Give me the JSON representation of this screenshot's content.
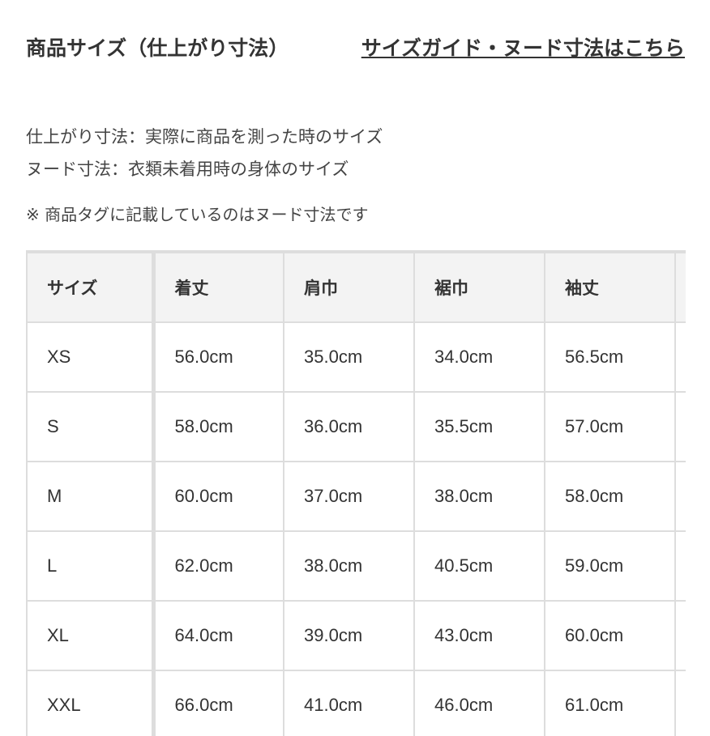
{
  "title": "商品サイズ（仕上がり寸法）",
  "guide_link": "サイズガイド・ヌード寸法はこちら",
  "notes": [
    "仕上がり寸法：実際に商品を測った時のサイズ",
    "ヌード寸法：衣類未着用時の身体のサイズ",
    "※ 商品タグに記載しているのはヌード寸法です"
  ],
  "table": {
    "headers": [
      "サイズ",
      "着丈",
      "肩巾",
      "裾巾",
      "袖丈",
      ""
    ],
    "rows": [
      [
        "XS",
        "56.0cm",
        "35.0cm",
        "34.0cm",
        "56.5cm",
        ""
      ],
      [
        "S",
        "58.0cm",
        "36.0cm",
        "35.5cm",
        "57.0cm",
        ""
      ],
      [
        "M",
        "60.0cm",
        "37.0cm",
        "38.0cm",
        "58.0cm",
        ""
      ],
      [
        "L",
        "62.0cm",
        "38.0cm",
        "40.5cm",
        "59.0cm",
        ""
      ],
      [
        "XL",
        "64.0cm",
        "39.0cm",
        "43.0cm",
        "60.0cm",
        ""
      ],
      [
        "XXL",
        "66.0cm",
        "41.0cm",
        "46.0cm",
        "61.0cm",
        ""
      ]
    ]
  }
}
